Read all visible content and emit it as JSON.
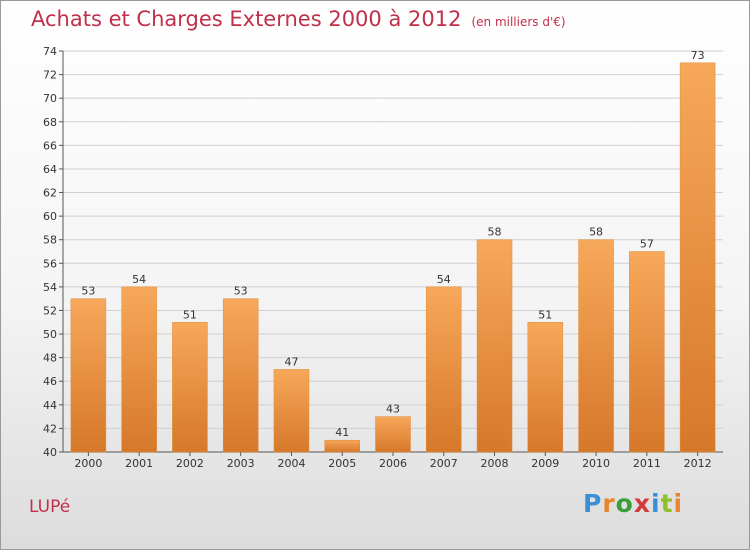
{
  "header": {
    "title": "Achats et Charges Externes 2000 à 2012",
    "unit": "(en milliers d'€)"
  },
  "footer": {
    "commune": "LUPé",
    "brand": "Proxiti",
    "brand_letters": [
      {
        "ch": "P",
        "color": "#3b8fd4"
      },
      {
        "ch": "r",
        "color": "#e9852b"
      },
      {
        "ch": "o",
        "color": "#3a9e3a"
      },
      {
        "ch": "x",
        "color": "#d23b3b"
      },
      {
        "ch": "i",
        "color": "#3b8fd4"
      },
      {
        "ch": "t",
        "color": "#8fbf2a"
      },
      {
        "ch": "i",
        "color": "#e9852b"
      }
    ]
  },
  "colors": {
    "accent": "#c0304a",
    "bar_light": "#f7a85a",
    "bar_dark": "#d6782a",
    "grid": "#d0d0d0"
  },
  "chart_data": {
    "type": "bar",
    "title": "Achats et Charges Externes 2000 à 2012",
    "subtitle": "(en milliers d'€)",
    "categories": [
      "2000",
      "2001",
      "2002",
      "2003",
      "2004",
      "2005",
      "2006",
      "2007",
      "2008",
      "2009",
      "2010",
      "2011",
      "2012"
    ],
    "values": [
      53,
      54,
      51,
      53,
      47,
      41,
      43,
      54,
      58,
      51,
      58,
      57,
      73
    ],
    "ylim": [
      40,
      74
    ],
    "yticks": [
      40,
      42,
      44,
      46,
      48,
      50,
      52,
      54,
      56,
      58,
      60,
      62,
      64,
      66,
      68,
      70,
      72,
      74
    ],
    "grid": true,
    "xlabel": "",
    "ylabel": ""
  }
}
